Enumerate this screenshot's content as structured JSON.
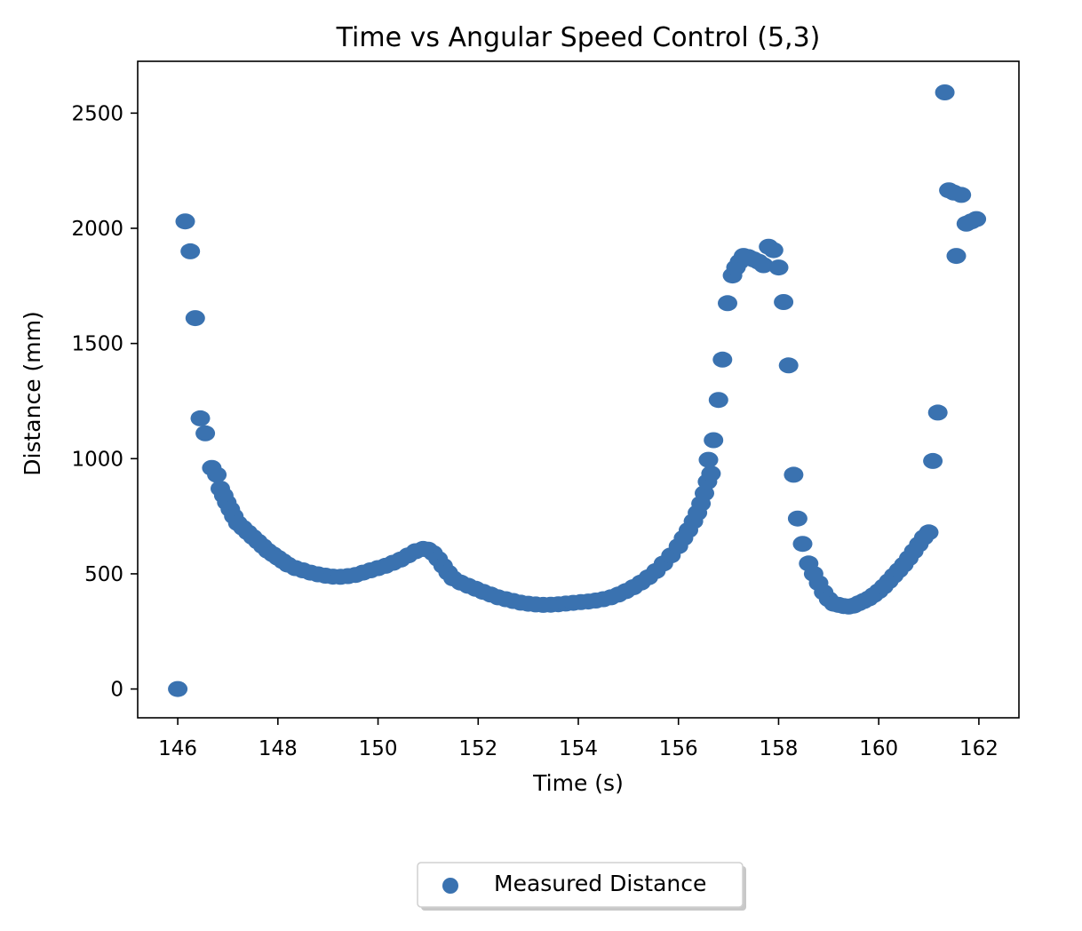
{
  "chart_data": {
    "type": "scatter",
    "title": "Time vs Angular Speed Control (5,3)",
    "xlabel": "Time (s)",
    "ylabel": "Distance (mm)",
    "xlim": [
      145.2,
      162.8
    ],
    "ylim": [
      -125,
      2725
    ],
    "xticks": [
      146,
      148,
      150,
      152,
      154,
      156,
      158,
      160,
      162
    ],
    "yticks": [
      0,
      500,
      1000,
      1500,
      2000,
      2500
    ],
    "grid": false,
    "legend_position": "bottom-center",
    "marker_color": "#3a72b0",
    "series": [
      {
        "name": "Measured Distance",
        "points": [
          [
            146.0,
            0
          ],
          [
            146.15,
            2030
          ],
          [
            146.25,
            1900
          ],
          [
            146.35,
            1610
          ],
          [
            146.45,
            1175
          ],
          [
            146.55,
            1110
          ],
          [
            146.68,
            960
          ],
          [
            146.78,
            930
          ],
          [
            146.85,
            870
          ],
          [
            146.92,
            840
          ],
          [
            146.98,
            810
          ],
          [
            147.05,
            780
          ],
          [
            147.12,
            750
          ],
          [
            147.2,
            720
          ],
          [
            147.3,
            700
          ],
          [
            147.4,
            680
          ],
          [
            147.5,
            660
          ],
          [
            147.6,
            640
          ],
          [
            147.7,
            620
          ],
          [
            147.8,
            600
          ],
          [
            147.9,
            585
          ],
          [
            148.0,
            570
          ],
          [
            148.1,
            555
          ],
          [
            148.2,
            540
          ],
          [
            148.35,
            525
          ],
          [
            148.5,
            515
          ],
          [
            148.65,
            505
          ],
          [
            148.8,
            498
          ],
          [
            148.95,
            492
          ],
          [
            149.1,
            488
          ],
          [
            149.25,
            487
          ],
          [
            149.4,
            490
          ],
          [
            149.55,
            495
          ],
          [
            149.7,
            505
          ],
          [
            149.85,
            515
          ],
          [
            150.0,
            525
          ],
          [
            150.15,
            535
          ],
          [
            150.3,
            548
          ],
          [
            150.45,
            562
          ],
          [
            150.6,
            580
          ],
          [
            150.75,
            598
          ],
          [
            150.9,
            608
          ],
          [
            151.0,
            605
          ],
          [
            151.1,
            590
          ],
          [
            151.2,
            565
          ],
          [
            151.3,
            535
          ],
          [
            151.4,
            505
          ],
          [
            151.5,
            480
          ],
          [
            151.65,
            462
          ],
          [
            151.8,
            448
          ],
          [
            151.95,
            435
          ],
          [
            152.1,
            422
          ],
          [
            152.25,
            410
          ],
          [
            152.4,
            398
          ],
          [
            152.55,
            390
          ],
          [
            152.7,
            382
          ],
          [
            152.85,
            375
          ],
          [
            153.0,
            370
          ],
          [
            153.15,
            367
          ],
          [
            153.3,
            365
          ],
          [
            153.45,
            366
          ],
          [
            153.6,
            368
          ],
          [
            153.75,
            371
          ],
          [
            153.9,
            374
          ],
          [
            154.05,
            377
          ],
          [
            154.2,
            380
          ],
          [
            154.35,
            384
          ],
          [
            154.5,
            390
          ],
          [
            154.65,
            398
          ],
          [
            154.8,
            410
          ],
          [
            154.95,
            425
          ],
          [
            155.1,
            442
          ],
          [
            155.25,
            462
          ],
          [
            155.4,
            485
          ],
          [
            155.55,
            512
          ],
          [
            155.7,
            545
          ],
          [
            155.85,
            580
          ],
          [
            156.0,
            620
          ],
          [
            156.1,
            655
          ],
          [
            156.2,
            690
          ],
          [
            156.3,
            728
          ],
          [
            156.38,
            765
          ],
          [
            156.45,
            805
          ],
          [
            156.52,
            850
          ],
          [
            156.58,
            900
          ],
          [
            156.65,
            935
          ],
          [
            156.6,
            995
          ],
          [
            156.7,
            1080
          ],
          [
            156.8,
            1255
          ],
          [
            156.88,
            1430
          ],
          [
            156.98,
            1675
          ],
          [
            157.08,
            1795
          ],
          [
            157.15,
            1830
          ],
          [
            157.22,
            1855
          ],
          [
            157.3,
            1880
          ],
          [
            157.4,
            1875
          ],
          [
            157.5,
            1865
          ],
          [
            157.6,
            1855
          ],
          [
            157.7,
            1840
          ],
          [
            157.8,
            1920
          ],
          [
            157.9,
            1905
          ],
          [
            158.0,
            1830
          ],
          [
            158.1,
            1680
          ],
          [
            158.2,
            1405
          ],
          [
            158.3,
            930
          ],
          [
            158.38,
            740
          ],
          [
            158.48,
            630
          ],
          [
            158.6,
            545
          ],
          [
            158.7,
            500
          ],
          [
            158.8,
            460
          ],
          [
            158.9,
            420
          ],
          [
            159.0,
            390
          ],
          [
            159.1,
            370
          ],
          [
            159.2,
            365
          ],
          [
            159.3,
            360
          ],
          [
            159.4,
            358
          ],
          [
            159.5,
            362
          ],
          [
            159.6,
            372
          ],
          [
            159.7,
            382
          ],
          [
            159.8,
            393
          ],
          [
            159.9,
            408
          ],
          [
            160.0,
            425
          ],
          [
            160.1,
            445
          ],
          [
            160.2,
            468
          ],
          [
            160.3,
            492
          ],
          [
            160.4,
            515
          ],
          [
            160.5,
            540
          ],
          [
            160.6,
            568
          ],
          [
            160.7,
            598
          ],
          [
            160.8,
            628
          ],
          [
            160.9,
            658
          ],
          [
            161.0,
            680
          ],
          [
            161.08,
            990
          ],
          [
            161.18,
            1200
          ],
          [
            161.32,
            2590
          ],
          [
            161.4,
            2165
          ],
          [
            161.5,
            2155
          ],
          [
            161.55,
            1880
          ],
          [
            161.65,
            2145
          ],
          [
            161.75,
            2020
          ],
          [
            161.85,
            2030
          ],
          [
            161.95,
            2040
          ]
        ]
      }
    ]
  }
}
